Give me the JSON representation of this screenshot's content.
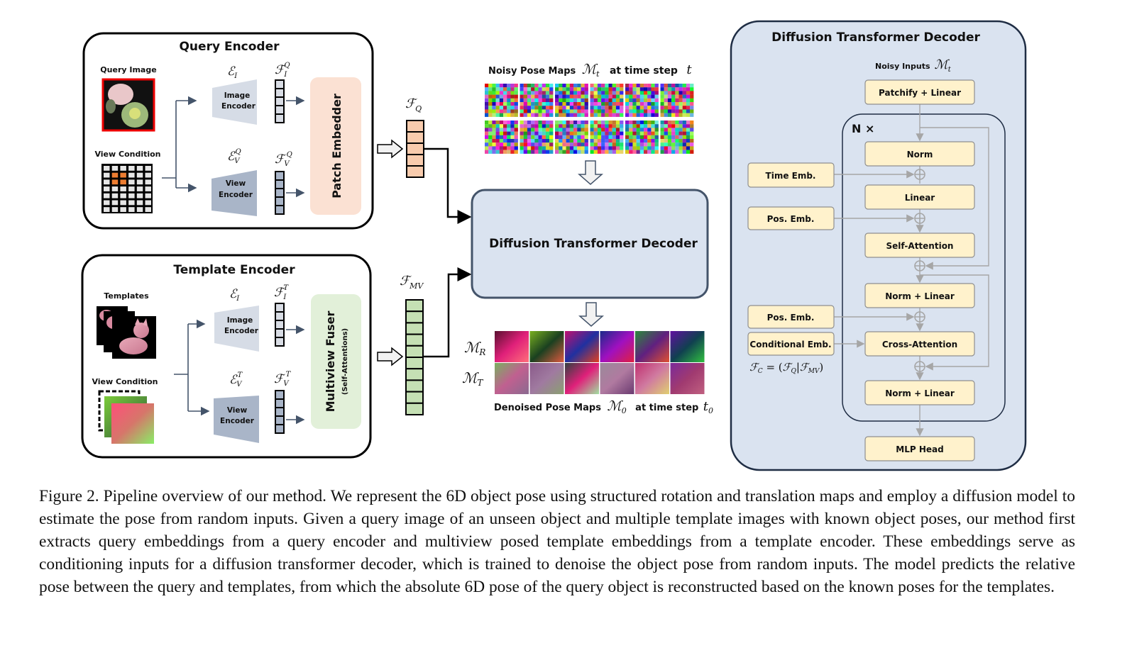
{
  "query_encoder": {
    "title": "Query Encoder",
    "query_image_label": "Query Image",
    "view_condition_label": "View Condition",
    "image_encoder": [
      "Image",
      "Encoder"
    ],
    "view_encoder": [
      "View",
      "Encoder"
    ],
    "enc_image_symbol": {
      "base": "ℰ",
      "sub": "I"
    },
    "enc_view_symbol": {
      "base": "ℰ",
      "sub": "V",
      "sup": "Q"
    },
    "feat_image_symbol": {
      "base": "ℱ",
      "sub": "I",
      "sup": "Q"
    },
    "feat_view_symbol": {
      "base": "ℱ",
      "sub": "V",
      "sup": "Q"
    },
    "patch_embedder": "Patch Embedder"
  },
  "template_encoder": {
    "title": "Template Encoder",
    "templates_label": "Templates",
    "view_condition_label": "View Condition",
    "image_encoder": [
      "Image",
      "Encoder"
    ],
    "view_encoder": [
      "View",
      "Encoder"
    ],
    "enc_image_symbol": {
      "base": "ℰ",
      "sub": "I"
    },
    "enc_view_symbol": {
      "base": "ℰ",
      "sub": "V",
      "sup": "T"
    },
    "feat_image_symbol": {
      "base": "ℱ",
      "sub": "I",
      "sup": "T"
    },
    "feat_view_symbol": {
      "base": "ℱ",
      "sub": "V",
      "sup": "T"
    },
    "fuser": "Multiview Fuser",
    "fuser_sub": "(Self-Attentions)"
  },
  "features": {
    "query": {
      "base": "ℱ",
      "sub": "Q"
    },
    "multiview": {
      "base": "ℱ",
      "sub": "MV"
    }
  },
  "center": {
    "noisy_label": "Noisy Pose Maps",
    "noisy_symbol": {
      "base": "ℳ",
      "sub": "t"
    },
    "noisy_time_label": "at time step",
    "noisy_time_symbol": "t",
    "decoder_title": "Diffusion Transformer Decoder",
    "rot_symbol": {
      "base": "ℳ",
      "sub": "R"
    },
    "trans_symbol": {
      "base": "ℳ",
      "sub": "T"
    },
    "denoised_label": "Denoised Pose Maps",
    "denoised_symbol": {
      "base": "ℳ",
      "sub": "0"
    },
    "denoised_time_label": "at time step",
    "denoised_time_symbol": {
      "base": "t",
      "sub": "0"
    }
  },
  "decoder_panel": {
    "title": "Diffusion Transformer Decoder",
    "noisy_inputs_label": "Noisy Inputs",
    "noisy_inputs_symbol": {
      "base": "ℳ",
      "sub": "t"
    },
    "repeat_label": "N ×",
    "blocks": [
      "Patchify + Linear",
      "Norm",
      "Linear",
      "Self-Attention",
      "Norm + Linear",
      "Cross-Attention",
      "Norm + Linear",
      "MLP Head"
    ],
    "side_inputs": [
      "Time Emb.",
      "Pos. Emb.",
      "Pos. Emb.",
      "Conditional Emb."
    ],
    "cond_formula": "ℱ_C = (ℱ_Q|ℱ_MV)",
    "cond_formula_parts": {
      "a": "ℱ",
      "a_sub": "C",
      "eq": " = (",
      "b": "ℱ",
      "b_sub": "Q",
      "bar": "|",
      "c": "ℱ",
      "c_sub": "MV",
      "close": ")"
    }
  },
  "caption": "Figure 2. Pipeline overview of our method. We represent the 6D object pose using structured rotation and translation maps and employ a diffusion model to estimate the pose from random inputs. Given a query image of an unseen object and multiple template images with known object poses, our method first extracts query embeddings from a query encoder and multiview posed template embeddings from a template encoder. These embeddings serve as conditioning inputs for a diffusion transformer decoder, which is trained to denoise the object pose from random inputs. The model predicts the relative pose between the query and templates, from which the absolute 6D pose of the query object is reconstructed based on the known poses for the templates.",
  "colors": {
    "patch_embedder": "#fbe1d3",
    "fuser": "#e2f0d9",
    "decoder_fill": "#dae3f0",
    "block_fill": "#fff2cc",
    "query_feature": "#f8cbad",
    "multiview_feature": "#c5e0b4"
  }
}
